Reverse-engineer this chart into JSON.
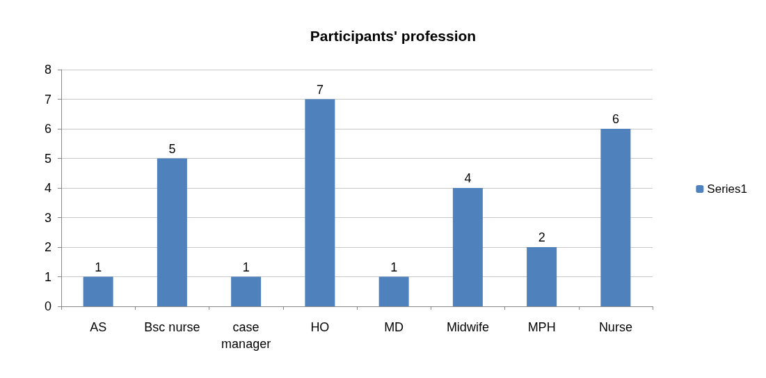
{
  "chart_data": {
    "type": "bar",
    "title": "Participants' profession",
    "categories": [
      "AS",
      "Bsc nurse",
      "case\nmanager",
      "HO",
      "MD",
      "Midwife",
      "MPH",
      "Nurse"
    ],
    "series": [
      {
        "name": "Series1",
        "color": "#4f81bd",
        "values": [
          1,
          5,
          1,
          7,
          1,
          4,
          2,
          6
        ]
      }
    ],
    "ylim": [
      0,
      8
    ],
    "yticks": [
      0,
      1,
      2,
      3,
      4,
      5,
      6,
      7,
      8
    ],
    "grid": "y",
    "legend": "right",
    "data_labels": true
  }
}
